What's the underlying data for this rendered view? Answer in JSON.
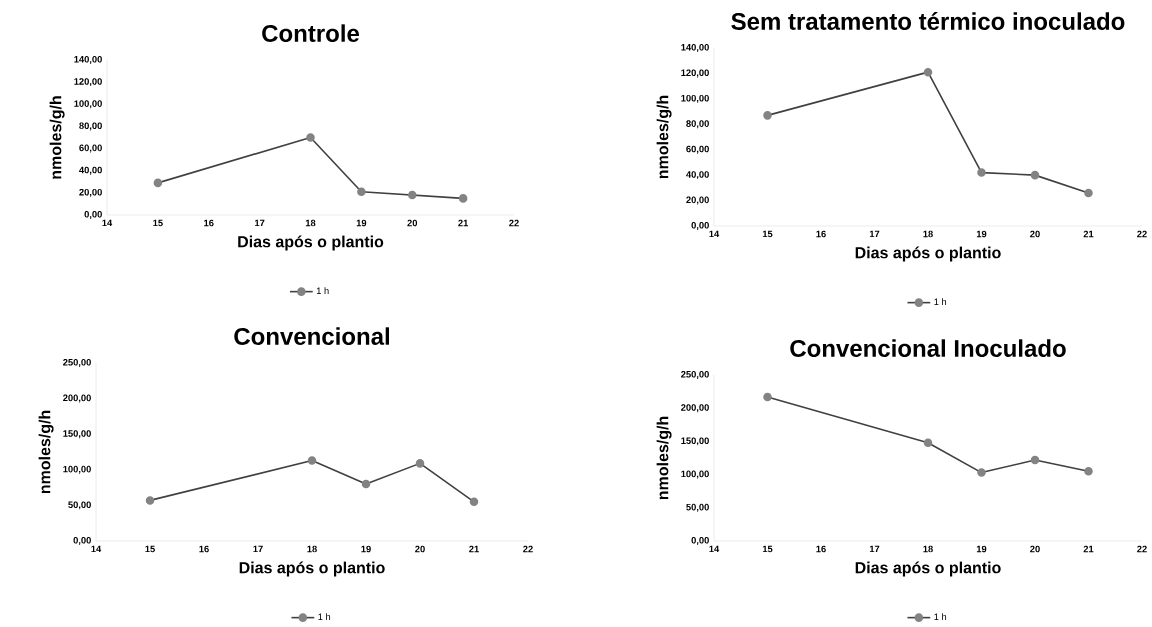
{
  "chart_data": [
    {
      "type": "line",
      "title": "Controle",
      "xlabel": "Dias após o plantio",
      "ylabel": "nmoles/g/h",
      "x": [
        15,
        18,
        19,
        20,
        21
      ],
      "xlim": [
        14,
        22
      ],
      "xticks": [
        14,
        15,
        16,
        17,
        18,
        19,
        20,
        21,
        22
      ],
      "ylim": [
        0,
        140
      ],
      "yticks": [
        {
          "value": 0,
          "label": "0,00"
        },
        {
          "value": 20,
          "label": "20,00"
        },
        {
          "value": 40,
          "label": "40,00"
        },
        {
          "value": 60,
          "label": "60,00"
        },
        {
          "value": 80,
          "label": "80,00"
        },
        {
          "value": 100,
          "label": "100,00"
        },
        {
          "value": 120,
          "label": "120,00"
        },
        {
          "value": 140,
          "label": "140,00"
        }
      ],
      "marker": "circle",
      "legend": "bottom",
      "series": [
        {
          "name": "1 h",
          "color": "#404040",
          "values": [
            29,
            70,
            21,
            18,
            15
          ]
        }
      ]
    },
    {
      "type": "line",
      "title": "Sem tratamento térmico inoculado",
      "xlabel": "Dias após o plantio",
      "ylabel": "nmoles/g/h",
      "x": [
        15,
        18,
        19,
        20,
        21
      ],
      "xlim": [
        14,
        22
      ],
      "xticks": [
        14,
        15,
        16,
        17,
        18,
        19,
        20,
        21,
        22
      ],
      "ylim": [
        0,
        140
      ],
      "yticks": [
        {
          "value": 0,
          "label": "0,00"
        },
        {
          "value": 20,
          "label": "20,00"
        },
        {
          "value": 40,
          "label": "40,00"
        },
        {
          "value": 60,
          "label": "60,00"
        },
        {
          "value": 80,
          "label": "80,00"
        },
        {
          "value": 100,
          "label": "100,00"
        },
        {
          "value": 120,
          "label": "120,00"
        },
        {
          "value": 140,
          "label": "140,00"
        }
      ],
      "marker": "circle",
      "legend": "bottom",
      "series": [
        {
          "name": "1 h",
          "color": "#404040",
          "values": [
            87,
            121,
            42,
            40,
            26
          ]
        }
      ]
    },
    {
      "type": "line",
      "title": "Convencional",
      "xlabel": "Dias após o plantio",
      "ylabel": "nmoles/g/h",
      "x": [
        15,
        18,
        19,
        20,
        21
      ],
      "xlim": [
        14,
        22
      ],
      "xticks": [
        14,
        15,
        16,
        17,
        18,
        19,
        20,
        21,
        22
      ],
      "ylim": [
        0,
        250
      ],
      "yticks": [
        {
          "value": 0,
          "label": "0,00"
        },
        {
          "value": 50,
          "label": "50,00"
        },
        {
          "value": 100,
          "label": "100,00"
        },
        {
          "value": 150,
          "label": "150,00"
        },
        {
          "value": 200,
          "label": "200,00"
        },
        {
          "value": 250,
          "label": "250,00"
        }
      ],
      "marker": "circle",
      "legend": "bottom",
      "series": [
        {
          "name": "1 h",
          "color": "#404040",
          "values": [
            57,
            113,
            80,
            109,
            55
          ]
        }
      ]
    },
    {
      "type": "line",
      "title": "Convencional Inoculado",
      "xlabel": "Dias após o plantio",
      "ylabel": "nmoles/g/h",
      "x": [
        15,
        18,
        19,
        20,
        21
      ],
      "xlim": [
        14,
        22
      ],
      "xticks": [
        14,
        15,
        16,
        17,
        18,
        19,
        20,
        21,
        22
      ],
      "ylim": [
        0,
        250
      ],
      "yticks": [
        {
          "value": 0,
          "label": "0,00"
        },
        {
          "value": 50,
          "label": "50,00"
        },
        {
          "value": 100,
          "label": "100,00"
        },
        {
          "value": 150,
          "label": "150,00"
        },
        {
          "value": 200,
          "label": "200,00"
        },
        {
          "value": 250,
          "label": "250,00"
        }
      ],
      "marker": "circle",
      "legend": "bottom",
      "series": [
        {
          "name": "1 h",
          "color": "#404040",
          "values": [
            217,
            148,
            103,
            122,
            105
          ]
        }
      ]
    }
  ]
}
